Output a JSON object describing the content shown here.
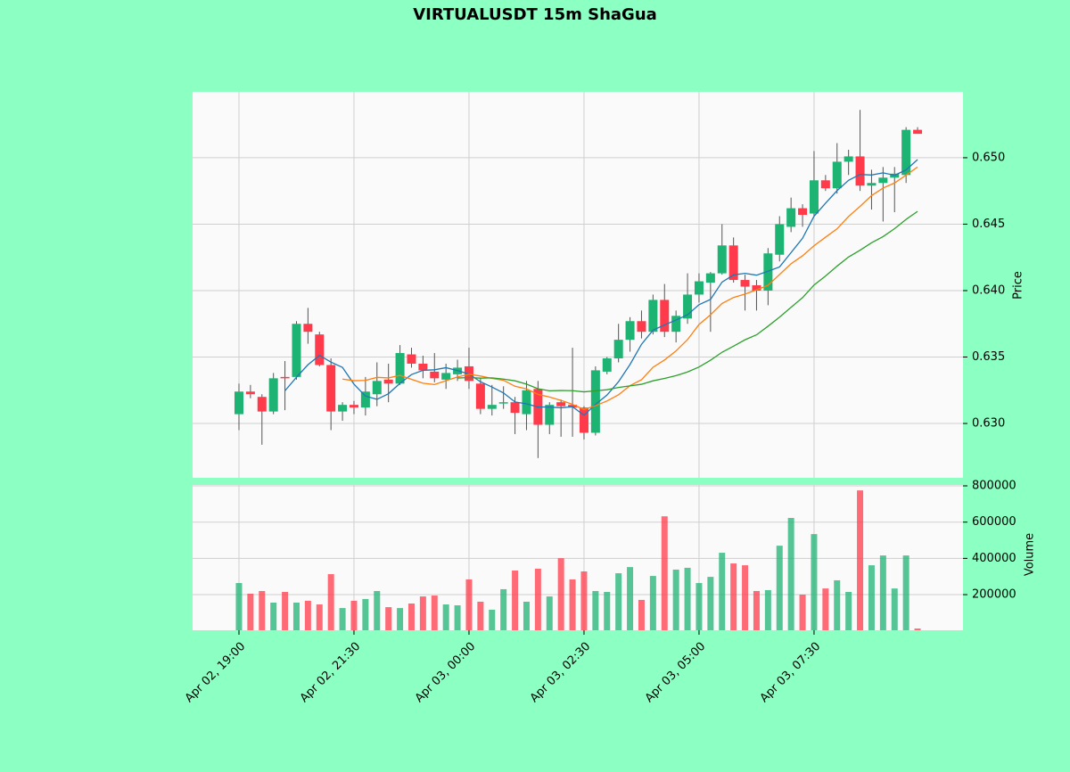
{
  "chart_data": {
    "type": "candlestick",
    "title": "VIRTUALUSDT 15m ShaGua",
    "ylabel": "Price",
    "y2label": "Volume",
    "up_color": "#1db373",
    "down_color": "#ff3b4b",
    "xlim": [
      -4.03,
      62.95
    ],
    "xticks": [
      {
        "value": 0,
        "label": "Apr 02, 19:00"
      },
      {
        "value": 10,
        "label": "Apr 02, 21:30"
      },
      {
        "value": 20,
        "label": "Apr 03, 00:00"
      },
      {
        "value": 30,
        "label": "Apr 03, 02:30"
      },
      {
        "value": 40,
        "label": "Apr 03, 05:00"
      },
      {
        "value": 50,
        "label": "Apr 03, 07:30"
      }
    ],
    "ylim": [
      0.62591,
      0.65496
    ],
    "yticks": [
      {
        "value": 0.63,
        "label": "0.630"
      },
      0.635,
      {
        "value": 0.64,
        "label": "0.640"
      },
      0.645,
      {
        "value": 0.65,
        "label": "0.650"
      }
    ],
    "y2lim": [
      3500,
      805000
    ],
    "y2ticks": [
      200000,
      400000,
      600000,
      800000
    ],
    "grid": true,
    "open": [
      0.6307,
      0.6324,
      0.632,
      0.6309,
      0.6335,
      0.6335,
      0.6375,
      0.6367,
      0.6344,
      0.6309,
      0.6314,
      0.6312,
      0.6322,
      0.6333,
      0.633,
      0.6352,
      0.6345,
      0.6339,
      0.6333,
      0.6337,
      0.6343,
      0.633,
      0.6311,
      0.6315,
      0.6316,
      0.6307,
      0.6326,
      0.6299,
      0.6316,
      0.6314,
      0.6312,
      0.6293,
      0.6339,
      0.6349,
      0.6363,
      0.6377,
      0.6369,
      0.6393,
      0.6369,
      0.6379,
      0.6397,
      0.6406,
      0.6413,
      0.6434,
      0.6408,
      0.6404,
      0.64,
      0.6427,
      0.6448,
      0.6462,
      0.6458,
      0.6483,
      0.6477,
      0.6497,
      0.6501,
      0.6479,
      0.6481,
      0.6485,
      0.6487,
      0.6521
    ],
    "high": [
      0.633,
      0.6329,
      0.6322,
      0.6338,
      0.6347,
      0.6377,
      0.6387,
      0.6369,
      0.6349,
      0.6316,
      0.6317,
      0.6335,
      0.6346,
      0.6345,
      0.6359,
      0.6357,
      0.6351,
      0.6353,
      0.6345,
      0.6348,
      0.6357,
      0.6334,
      0.6329,
      0.6328,
      0.632,
      0.6332,
      0.6332,
      0.6316,
      0.6318,
      0.6357,
      0.6313,
      0.6343,
      0.635,
      0.6375,
      0.638,
      0.6385,
      0.6397,
      0.6405,
      0.6385,
      0.6413,
      0.6413,
      0.6414,
      0.645,
      0.644,
      0.6412,
      0.6408,
      0.6432,
      0.6456,
      0.647,
      0.6465,
      0.6505,
      0.6487,
      0.6511,
      0.6506,
      0.6536,
      0.6491,
      0.6493,
      0.6493,
      0.6523,
      0.6523
    ],
    "low": [
      0.6295,
      0.6319,
      0.6284,
      0.6307,
      0.631,
      0.6333,
      0.636,
      0.6343,
      0.6295,
      0.6302,
      0.6307,
      0.6306,
      0.6313,
      0.6316,
      0.6329,
      0.6342,
      0.6334,
      0.6331,
      0.6326,
      0.6332,
      0.6326,
      0.6307,
      0.6306,
      0.6311,
      0.6292,
      0.6295,
      0.6274,
      0.6292,
      0.629,
      0.629,
      0.6288,
      0.6291,
      0.6337,
      0.6346,
      0.6354,
      0.6364,
      0.6367,
      0.6365,
      0.6361,
      0.6375,
      0.6391,
      0.6369,
      0.6412,
      0.6406,
      0.6385,
      0.6385,
      0.6389,
      0.6422,
      0.6444,
      0.6448,
      0.6456,
      0.6475,
      0.6473,
      0.6487,
      0.6475,
      0.6461,
      0.6452,
      0.6459,
      0.6481,
      0.6518
    ],
    "close": [
      0.6324,
      0.6322,
      0.6309,
      0.6334,
      0.6334,
      0.6375,
      0.6369,
      0.6344,
      0.6309,
      0.6314,
      0.6312,
      0.6324,
      0.6332,
      0.633,
      0.6353,
      0.6345,
      0.634,
      0.6334,
      0.6338,
      0.6342,
      0.6332,
      0.6311,
      0.6314,
      0.6316,
      0.6308,
      0.6325,
      0.6299,
      0.6314,
      0.6313,
      0.6312,
      0.6293,
      0.634,
      0.6349,
      0.6363,
      0.6377,
      0.6369,
      0.6393,
      0.6369,
      0.6381,
      0.6397,
      0.6407,
      0.6413,
      0.6434,
      0.6408,
      0.6403,
      0.64,
      0.6428,
      0.645,
      0.6462,
      0.6457,
      0.6483,
      0.6477,
      0.6497,
      0.6501,
      0.6479,
      0.6481,
      0.6485,
      0.6488,
      0.6521,
      0.6518
    ],
    "volume": [
      264000,
      205000,
      220000,
      156000,
      215000,
      156000,
      166000,
      146000,
      313000,
      126000,
      166000,
      176000,
      220000,
      131000,
      126000,
      151000,
      190000,
      195000,
      146000,
      141000,
      284000,
      161000,
      117000,
      230000,
      333000,
      161000,
      343000,
      190000,
      401000,
      284000,
      328000,
      220000,
      215000,
      318000,
      352000,
      171000,
      303000,
      632000,
      338000,
      348000,
      264000,
      298000,
      431000,
      372000,
      362000,
      220000,
      225000,
      470000,
      623000,
      200000,
      534000,
      234000,
      279000,
      215000,
      775000,
      362000,
      416000,
      234000,
      416000,
      13000
    ],
    "series": [
      {
        "color": "#1f77b4",
        "values": [
          null,
          null,
          null,
          null,
          0.63246,
          0.63348,
          0.63442,
          0.63512,
          0.63462,
          0.63422,
          0.63296,
          0.63206,
          0.63182,
          0.63224,
          0.63302,
          0.63368,
          0.634,
          0.63404,
          0.6342,
          0.63398,
          0.63372,
          0.63314,
          0.63274,
          0.6323,
          0.63162,
          0.63148,
          0.63124,
          0.63124,
          0.63118,
          0.63126,
          0.63062,
          0.63144,
          0.63214,
          0.63314,
          0.63444,
          0.63596,
          0.63702,
          0.63742,
          0.63778,
          0.63818,
          0.63894,
          0.63934,
          0.64064,
          0.64118,
          0.6413,
          0.64116,
          0.64146,
          0.64178,
          0.64286,
          0.64394,
          0.6456,
          0.64658,
          0.64752,
          0.6483,
          0.64874,
          0.6487,
          0.64886,
          0.64868,
          0.64908,
          0.64986
        ]
      },
      {
        "color": "#ff7f0e",
        "values": [
          null,
          null,
          null,
          null,
          null,
          null,
          null,
          null,
          null,
          0.63334,
          0.63322,
          0.63324,
          0.63347,
          0.63343,
          0.63362,
          0.63332,
          0.63303,
          0.63293,
          0.63322,
          0.6335,
          0.6337,
          0.63357,
          0.63339,
          0.63325,
          0.6328,
          0.6326,
          0.63219,
          0.63199,
          0.63174,
          0.63144,
          0.63105,
          0.63134,
          0.63169,
          0.63216,
          0.63285,
          0.63329,
          0.63423,
          0.63478,
          0.63546,
          0.63631,
          0.63745,
          0.63818,
          0.63903,
          0.63948,
          0.63974,
          0.64005,
          0.6404,
          0.64121,
          0.64202,
          0.64262,
          0.64338,
          0.64402,
          0.64465,
          0.64558,
          0.64634,
          0.64715,
          0.64772,
          0.6481,
          0.64869,
          0.6493
        ]
      },
      {
        "color": "#2ca02c",
        "values": [
          null,
          null,
          null,
          null,
          null,
          null,
          null,
          null,
          null,
          null,
          null,
          null,
          null,
          null,
          null,
          null,
          null,
          null,
          null,
          0.63342,
          0.63346,
          0.63341,
          0.63343,
          0.63334,
          0.63321,
          0.63296,
          0.63261,
          0.63246,
          0.63248,
          0.63247,
          0.63238,
          0.63246,
          0.63254,
          0.63271,
          0.63283,
          0.63295,
          0.63321,
          0.63339,
          0.6336,
          0.63388,
          0.63425,
          0.63476,
          0.63536,
          0.63582,
          0.6363,
          0.63667,
          0.63732,
          0.638,
          0.63874,
          0.63947,
          0.64042,
          0.6411,
          0.64184,
          0.64253,
          0.64304,
          0.6436,
          0.64406,
          0.64466,
          0.64536,
          0.64596
        ]
      }
    ]
  }
}
